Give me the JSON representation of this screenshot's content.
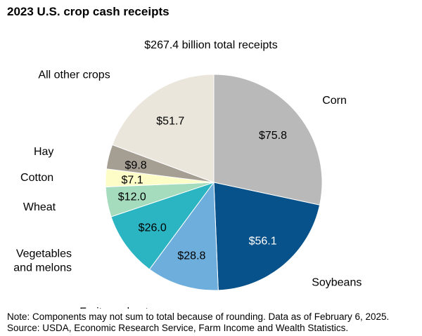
{
  "title": "2023 U.S. crop cash receipts",
  "subtitle": "$267.4 billion total receipts",
  "notes": {
    "line1": "Note: Components may not sum to total because of rounding. Data as of February 6, 2025.",
    "line2": "Source: USDA, Economic Research Service, Farm Income and Wealth Statistics."
  },
  "chart_data": {
    "type": "pie",
    "title": "2023 U.S. crop cash receipts",
    "subtitle": "$267.4 billion total receipts",
    "total": 267.4,
    "unit": "$ billion",
    "start": "12 o'clock, clockwise",
    "slices": [
      {
        "name": "Corn",
        "label_lines": [
          "Corn"
        ],
        "value": 75.8,
        "value_label": "$75.8",
        "color": "#b9b9b9",
        "value_text_color": "#000000"
      },
      {
        "name": "Soybeans",
        "label_lines": [
          "Soybeans"
        ],
        "value": 56.1,
        "value_label": "$56.1",
        "color": "#07528a",
        "value_text_color": "#ffffff"
      },
      {
        "name": "Fruits and nuts",
        "label_lines": [
          "Fruits and nuts"
        ],
        "value": 28.8,
        "value_label": "$28.8",
        "color": "#6eaedc",
        "value_text_color": "#000000"
      },
      {
        "name": "Vegetables and melons",
        "label_lines": [
          "Vegetables",
          "and melons"
        ],
        "value": 26.0,
        "value_label": "$26.0",
        "color": "#2bb4c2",
        "value_text_color": "#000000"
      },
      {
        "name": "Wheat",
        "label_lines": [
          "Wheat"
        ],
        "value": 12.0,
        "value_label": "$12.0",
        "color": "#a4dcbd",
        "value_text_color": "#000000"
      },
      {
        "name": "Cotton",
        "label_lines": [
          "Cotton"
        ],
        "value": 7.1,
        "value_label": "$7.1",
        "color": "#fdfdc8",
        "value_text_color": "#000000"
      },
      {
        "name": "Hay",
        "label_lines": [
          "Hay"
        ],
        "value": 9.8,
        "value_label": "$9.8",
        "color": "#a59e93",
        "value_text_color": "#000000"
      },
      {
        "name": "All other crops",
        "label_lines": [
          "All other crops"
        ],
        "value": 51.7,
        "value_label": "$51.7",
        "color": "#ebe6dc",
        "value_text_color": "#000000"
      }
    ]
  }
}
